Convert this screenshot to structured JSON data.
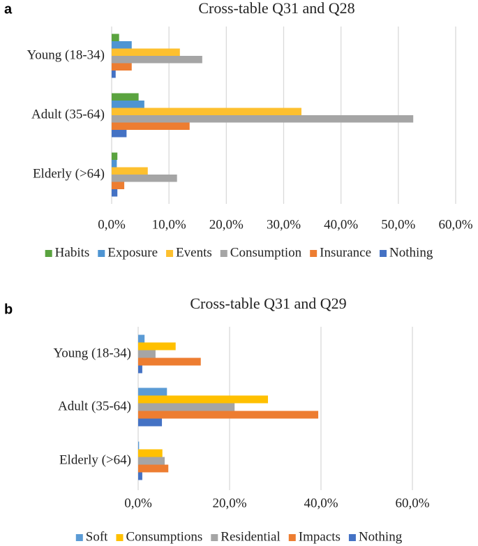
{
  "chart_data": [
    {
      "type": "bar",
      "orientation": "horizontal",
      "panel_label": "a",
      "title": "Cross-table Q31 and Q28",
      "categories": [
        "Young (18-34)",
        "Adult (35-64)",
        "Elderly (>64)"
      ],
      "series": [
        {
          "name": "Habits",
          "color": "#5aa33f",
          "values": [
            1.3,
            4.7,
            1.0
          ]
        },
        {
          "name": "Exposure",
          "color": "#4e94d2",
          "values": [
            3.5,
            5.7,
            0.9
          ]
        },
        {
          "name": "Events",
          "color": "#fdc02f",
          "values": [
            11.9,
            33.1,
            6.3
          ]
        },
        {
          "name": "Consumption",
          "color": "#a5a5a5",
          "values": [
            15.8,
            52.6,
            11.4
          ]
        },
        {
          "name": "Insurance",
          "color": "#ed7d31",
          "values": [
            3.5,
            13.6,
            2.2
          ]
        },
        {
          "name": "Nothing",
          "color": "#4472c4",
          "values": [
            0.7,
            2.6,
            1.0
          ]
        }
      ],
      "xlim": [
        0,
        60
      ],
      "xticks": [
        {
          "value": 0,
          "label": "0,0%"
        },
        {
          "value": 10,
          "label": "10,0%"
        },
        {
          "value": 20,
          "label": "20,0%"
        },
        {
          "value": 30,
          "label": "30,0%"
        },
        {
          "value": 40,
          "label": "40,0%"
        },
        {
          "value": 50,
          "label": "50,0%"
        },
        {
          "value": 60,
          "label": "60,0%"
        }
      ],
      "grid": true,
      "legend": "bottom"
    },
    {
      "type": "bar",
      "orientation": "horizontal",
      "panel_label": "b",
      "title": "Cross-table Q31 and Q29",
      "categories": [
        "Young (18-34)",
        "Adult (35-64)",
        "Elderly (>64)"
      ],
      "series": [
        {
          "name": "Soft",
          "color": "#5b9bd5",
          "values": [
            1.4,
            6.3,
            0.2
          ]
        },
        {
          "name": "Consumptions",
          "color": "#ffc000",
          "values": [
            8.2,
            28.4,
            5.3
          ]
        },
        {
          "name": "Residential",
          "color": "#a5a5a5",
          "values": [
            3.8,
            21.1,
            5.8
          ]
        },
        {
          "name": "Impacts",
          "color": "#ed7d31",
          "values": [
            13.7,
            39.4,
            6.6
          ]
        },
        {
          "name": "Nothing",
          "color": "#4472c4",
          "values": [
            0.9,
            5.2,
            0.9
          ]
        }
      ],
      "xlim": [
        0,
        60
      ],
      "xticks": [
        {
          "value": 0,
          "label": "0,0%"
        },
        {
          "value": 20,
          "label": "20,0%"
        },
        {
          "value": 40,
          "label": "40,0%"
        },
        {
          "value": 60,
          "label": "60,0%"
        }
      ],
      "grid": true,
      "legend": "bottom"
    }
  ]
}
